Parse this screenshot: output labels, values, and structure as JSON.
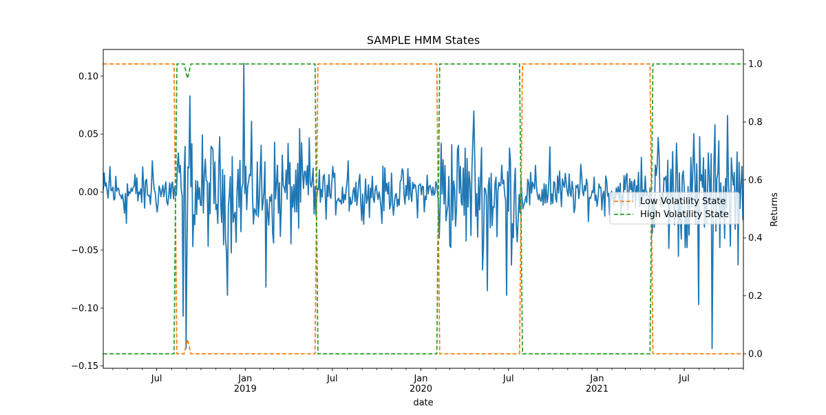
{
  "chart_data": {
    "type": "line",
    "title": "SAMPLE HMM States",
    "xlabel": "date",
    "ylabel_right": "Returns",
    "x_range": [
      "2018-03-12",
      "2021-11-01"
    ],
    "x_ticks": [
      {
        "date": "2018-07-01",
        "label": "Jul",
        "sublabel": ""
      },
      {
        "date": "2019-01-01",
        "label": "Jan",
        "sublabel": "2019"
      },
      {
        "date": "2019-07-01",
        "label": "Jul",
        "sublabel": ""
      },
      {
        "date": "2020-01-01",
        "label": "Jan",
        "sublabel": "2020"
      },
      {
        "date": "2020-07-01",
        "label": "Jul",
        "sublabel": ""
      },
      {
        "date": "2021-01-01",
        "label": "Jan",
        "sublabel": "2021"
      },
      {
        "date": "2021-07-01",
        "label": "Jul",
        "sublabel": ""
      }
    ],
    "y_left": {
      "range": [
        -0.152,
        0.123
      ],
      "ticks": [
        -0.15,
        -0.1,
        -0.05,
        0.0,
        0.05,
        0.1
      ],
      "tick_labels": [
        "−0.15",
        "−0.10",
        "−0.05",
        "0.00",
        "0.05",
        "0.10"
      ]
    },
    "y_right": {
      "range": [
        -0.05,
        1.05
      ],
      "ticks": [
        0.0,
        0.2,
        0.4,
        0.6,
        0.8,
        1.0
      ],
      "tick_labels": [
        "0.0",
        "0.2",
        "0.4",
        "0.6",
        "0.8",
        "1.0"
      ]
    },
    "series": [
      {
        "name": "",
        "axis": "left",
        "color": "#1f77b4",
        "style": "solid",
        "segments": [
          {
            "start": "2018-03-12",
            "end": "2018-08-09",
            "amplitude": 0.015,
            "extremes": [
              [
                "2018-03-27",
                0.022
              ],
              [
                "2018-04-29",
                -0.027
              ],
              [
                "2018-06-23",
                0.027
              ]
            ]
          },
          {
            "start": "2018-08-09",
            "end": "2019-05-29",
            "amplitude": 0.035,
            "extremes": [
              [
                "2018-08-25",
                -0.107
              ],
              [
                "2018-09-01",
                -0.135
              ],
              [
                "2018-09-08",
                0.083
              ],
              [
                "2018-12-29",
                0.111
              ],
              [
                "2018-11-25",
                -0.089
              ],
              [
                "2019-02-14",
                -0.082
              ]
            ]
          },
          {
            "start": "2019-05-29",
            "end": "2020-02-06",
            "amplitude": 0.015,
            "extremes": [
              [
                "2019-10-12",
                -0.027
              ],
              [
                "2019-08-04",
                0.027
              ]
            ]
          },
          {
            "start": "2020-02-06",
            "end": "2020-07-27",
            "amplitude": 0.04,
            "extremes": [
              [
                "2020-05-19",
                -0.085
              ],
              [
                "2020-06-28",
                -0.089
              ],
              [
                "2020-04-20",
                0.07
              ]
            ]
          },
          {
            "start": "2020-07-27",
            "end": "2021-04-24",
            "amplitude": 0.015,
            "extremes": [
              [
                "2020-09-25",
                0.039
              ],
              [
                "2021-04-04",
                0.03
              ]
            ]
          },
          {
            "start": "2021-04-24",
            "end": "2021-11-01",
            "amplitude": 0.04,
            "extremes": [
              [
                "2021-08-29",
                -0.135
              ],
              [
                "2021-08-01",
                -0.097
              ],
              [
                "2021-09-29",
                0.066
              ]
            ]
          }
        ]
      },
      {
        "name": "Low Volatility State",
        "axis": "right",
        "color": "#ff7f0e",
        "style": "dashed",
        "transitions": [
          [
            "2018-03-12",
            1
          ],
          [
            "2018-08-06",
            1
          ],
          [
            "2018-08-12",
            0
          ],
          [
            "2018-08-27",
            0
          ],
          [
            "2018-09-03",
            0.05
          ],
          [
            "2018-09-10",
            0
          ],
          [
            "2019-05-26",
            0
          ],
          [
            "2019-06-01",
            1
          ],
          [
            "2020-02-03",
            1
          ],
          [
            "2020-02-09",
            0
          ],
          [
            "2020-07-24",
            0
          ],
          [
            "2020-07-30",
            1
          ],
          [
            "2021-04-21",
            1
          ],
          [
            "2021-04-27",
            0
          ],
          [
            "2021-11-01",
            0
          ]
        ]
      },
      {
        "name": "High Volatility State",
        "axis": "right",
        "color": "#2ca02c",
        "style": "dashed",
        "transitions": [
          [
            "2018-03-12",
            0
          ],
          [
            "2018-08-06",
            0
          ],
          [
            "2018-08-12",
            1
          ],
          [
            "2018-08-27",
            1
          ],
          [
            "2018-09-03",
            0.95
          ],
          [
            "2018-09-10",
            1
          ],
          [
            "2019-05-26",
            1
          ],
          [
            "2019-06-01",
            0
          ],
          [
            "2020-02-03",
            0
          ],
          [
            "2020-02-09",
            1
          ],
          [
            "2020-07-24",
            1
          ],
          [
            "2020-07-30",
            0
          ],
          [
            "2021-04-21",
            0
          ],
          [
            "2021-04-27",
            1
          ],
          [
            "2021-11-01",
            1
          ]
        ]
      }
    ],
    "legend": {
      "position": "center-right",
      "entries": [
        "Low Volatility State",
        "High Volatility State"
      ]
    },
    "grid": false
  }
}
